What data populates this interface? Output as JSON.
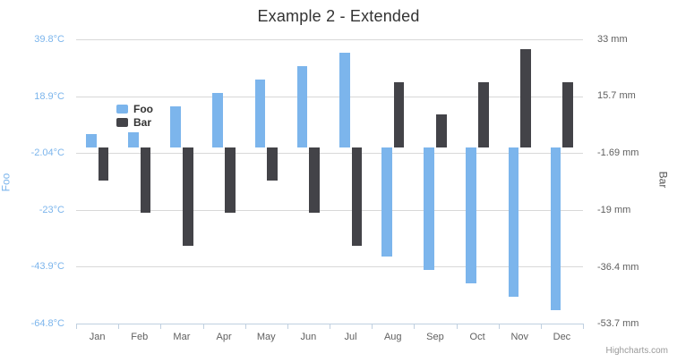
{
  "chart": {
    "title": "Example 2 - Extended",
    "credits": "Highcharts.com"
  },
  "chart_data": {
    "type": "bar",
    "title": "Example 2 - Extended",
    "categories": [
      "Jan",
      "Feb",
      "Mar",
      "Apr",
      "May",
      "Jun",
      "Jul",
      "Aug",
      "Sep",
      "Oct",
      "Nov",
      "Dec"
    ],
    "series": [
      {
        "name": "Foo",
        "color": "#7cb5ec",
        "axis": "left",
        "values": [
          5,
          5.5,
          15,
          20,
          25,
          30,
          35,
          -40,
          -45,
          -50,
          -55,
          -60
        ]
      },
      {
        "name": "Bar",
        "color": "#434348",
        "axis": "right",
        "values": [
          -10,
          -20,
          -30,
          -20,
          -10,
          -20,
          -30,
          20,
          10,
          20,
          30,
          20
        ]
      }
    ],
    "y_axis_left": {
      "title": "Foo",
      "unit": "°C",
      "range": [
        -64.8,
        39.8
      ],
      "ticks": [
        39.8,
        18.9,
        -2.04,
        -23,
        -43.9,
        -64.8
      ],
      "tick_labels": [
        "39.8°C",
        "18.9°C",
        "-2.04°C",
        "-23°C",
        "-43.9°C",
        "-64.8°C"
      ],
      "color": "#7cb5ec"
    },
    "y_axis_right": {
      "title": "Bar",
      "unit": "mm",
      "range": [
        -53.7,
        33
      ],
      "ticks": [
        33,
        15.7,
        -1.69,
        -19,
        -36.4,
        -53.7
      ],
      "tick_labels": [
        "33 mm",
        "15.7 mm",
        "-1.69 mm",
        "-19 mm",
        "-36.4 mm",
        "-53.7 mm"
      ],
      "color": "#606060"
    },
    "legend": [
      "Foo",
      "Bar"
    ],
    "legend_position": "inside-top-left",
    "grid": true,
    "grid_color": "#d8d8d8",
    "axis_line_color": "#c0d0e0"
  }
}
